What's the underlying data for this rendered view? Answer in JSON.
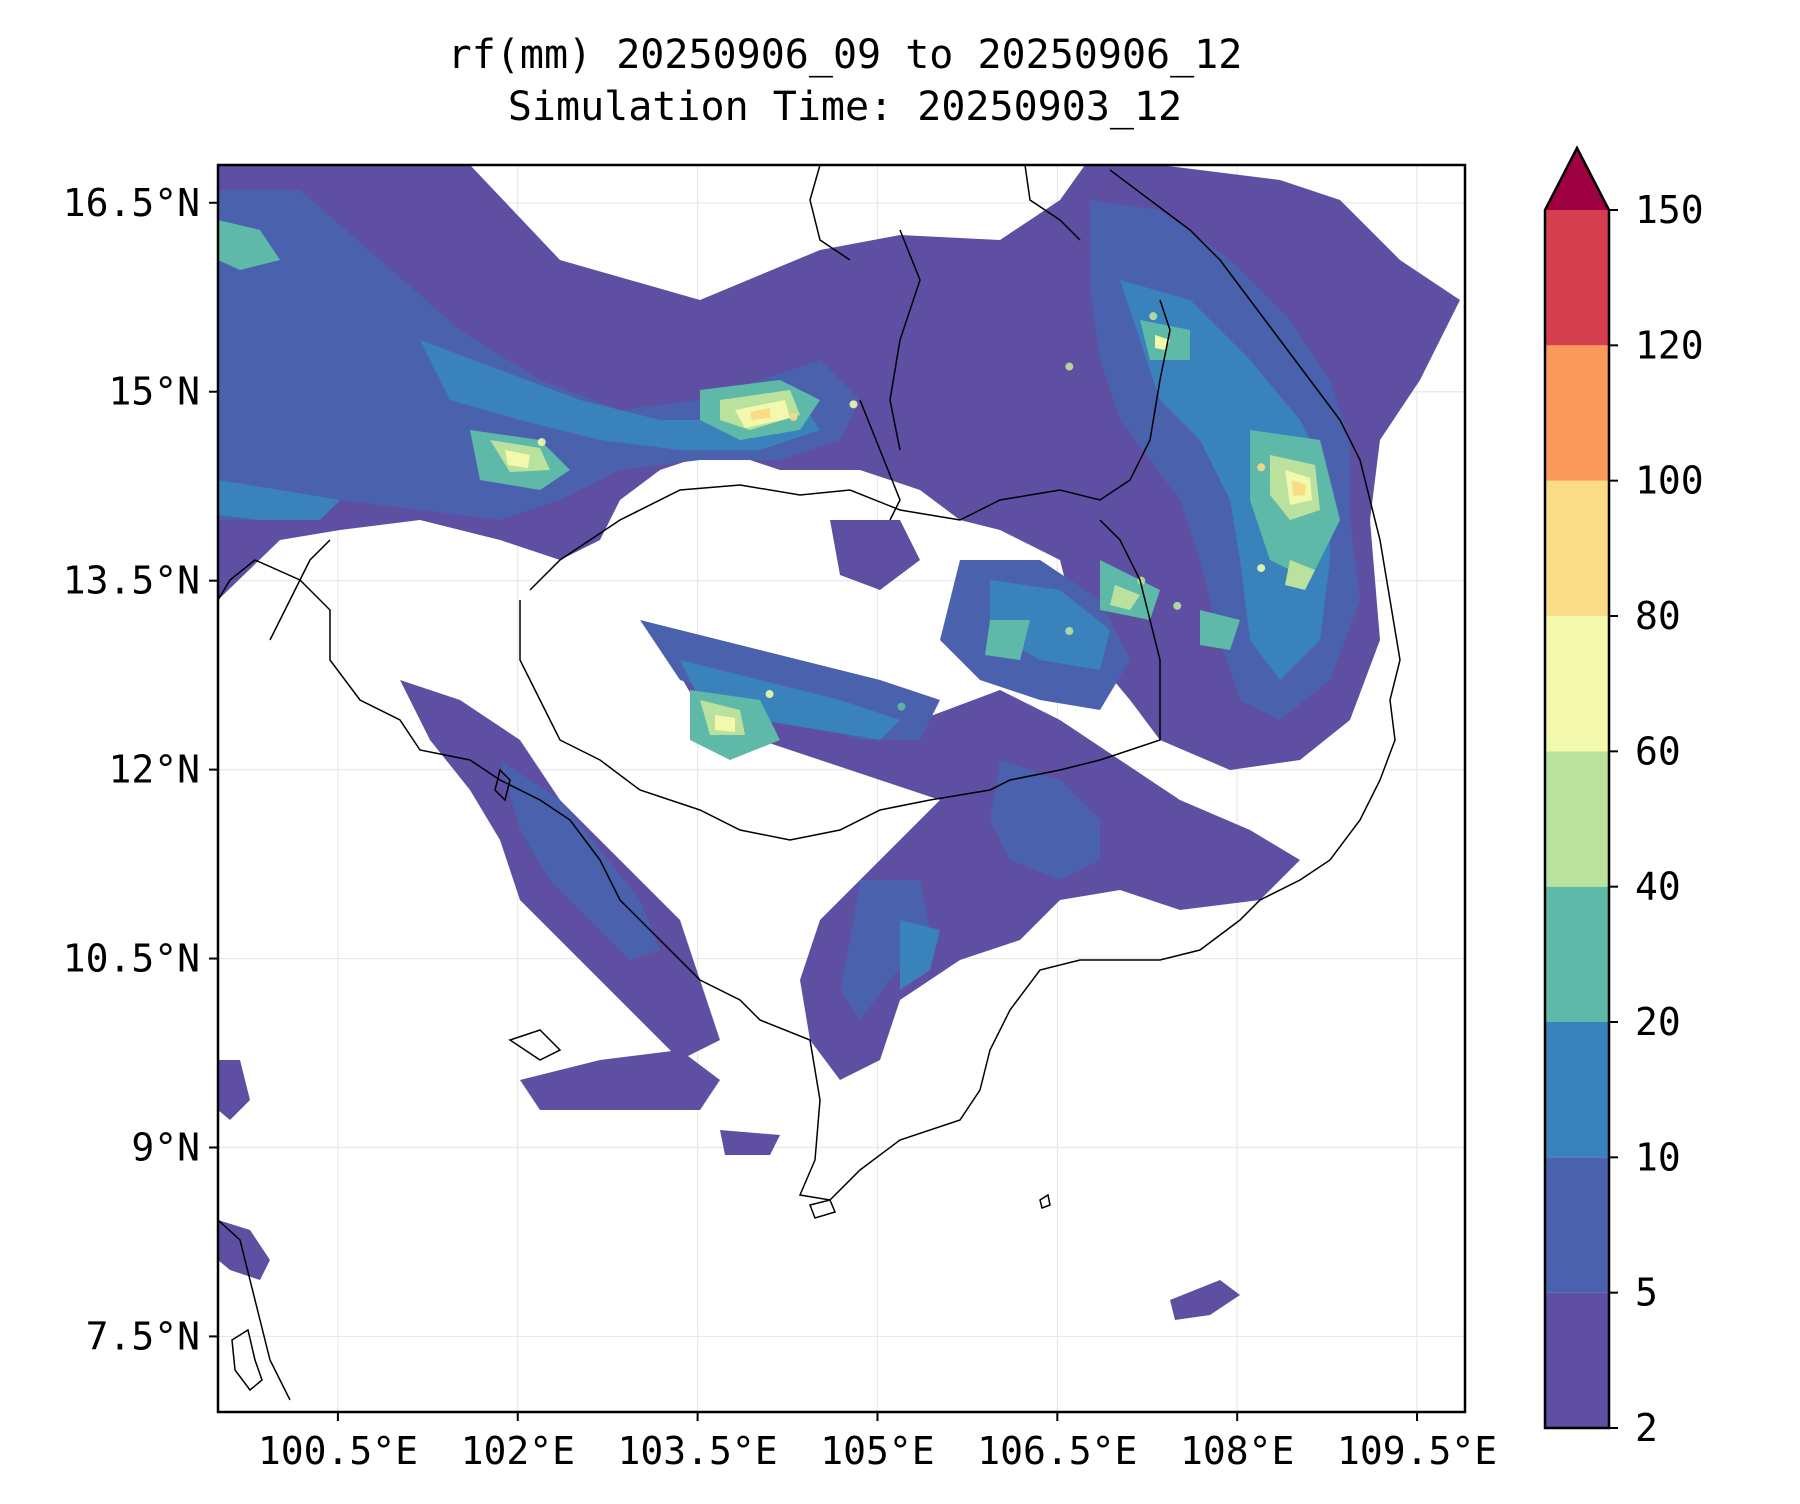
{
  "title": {
    "line1": "rf(mm) 20250906_09 to 20250906_12",
    "line2": "Simulation Time: 20250903_12"
  },
  "map": {
    "projection": "PlateCarree",
    "lon_range": [
      99.5,
      109.9
    ],
    "lat_range": [
      6.9,
      16.8
    ],
    "x_ticks": [
      {
        "value": 100.5,
        "label": "100.5°E"
      },
      {
        "value": 102,
        "label": "102°E"
      },
      {
        "value": 103.5,
        "label": "103.5°E"
      },
      {
        "value": 105,
        "label": "105°E"
      },
      {
        "value": 106.5,
        "label": "106.5°E"
      },
      {
        "value": 108,
        "label": "108°E"
      },
      {
        "value": 109.5,
        "label": "109.5°E"
      }
    ],
    "y_ticks": [
      {
        "value": 16.5,
        "label": "16.5°N"
      },
      {
        "value": 15,
        "label": "15°N"
      },
      {
        "value": 13.5,
        "label": "13.5°N"
      },
      {
        "value": 12,
        "label": "12°N"
      },
      {
        "value": 10.5,
        "label": "10.5°N"
      },
      {
        "value": 9,
        "label": "9°N"
      },
      {
        "value": 7.5,
        "label": "7.5°N"
      }
    ],
    "grid": true,
    "grid_color": "#e8e8e8",
    "coastline_color": "#000000"
  },
  "colorbar": {
    "levels": [
      2,
      5,
      10,
      20,
      40,
      60,
      80,
      100,
      120,
      150
    ],
    "tick_labels": [
      "2",
      "5",
      "10",
      "20",
      "40",
      "60",
      "80",
      "100",
      "120",
      "150"
    ],
    "colors": [
      "#5e4fa2",
      "#4a62ad",
      "#3a82bb",
      "#5fb9a9",
      "#bbe19e",
      "#f2f9ac",
      "#fadb86",
      "#f9995a",
      "#d53e4f"
    ],
    "extend": "max",
    "extend_color": "#9e0142"
  },
  "precip_cells": [
    {
      "lon": 104.3,
      "lat": 14.8,
      "level": 6
    },
    {
      "lon": 104.8,
      "lat": 14.9,
      "level": 5
    },
    {
      "lon": 107.3,
      "lat": 15.6,
      "level": 4
    },
    {
      "lon": 108.2,
      "lat": 14.4,
      "level": 6
    },
    {
      "lon": 108.2,
      "lat": 13.6,
      "level": 5
    },
    {
      "lon": 107.2,
      "lat": 13.5,
      "level": 4
    },
    {
      "lon": 107.5,
      "lat": 13.3,
      "level": 4
    },
    {
      "lon": 104.1,
      "lat": 12.6,
      "level": 5
    },
    {
      "lon": 105.2,
      "lat": 12.5,
      "level": 3
    },
    {
      "lon": 102.2,
      "lat": 14.6,
      "level": 5
    },
    {
      "lon": 106.6,
      "lat": 13.1,
      "level": 4
    },
    {
      "lon": 106.6,
      "lat": 15.2,
      "level": 4
    }
  ]
}
